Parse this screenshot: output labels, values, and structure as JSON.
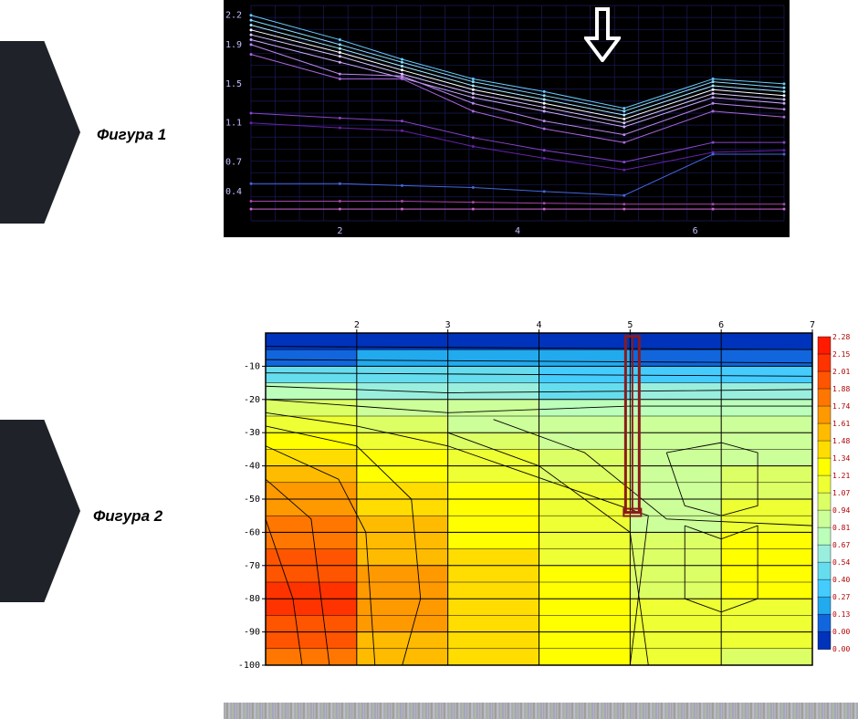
{
  "figure1": {
    "label": "Фигура 1",
    "type": "line",
    "background_color": "#000000",
    "grid_color": "#1a1a5a",
    "axis_label_color": "#c0c0ff",
    "axis_fontsize": 10,
    "xlim": [
      1,
      7
    ],
    "x_ticks": [
      2,
      4,
      6
    ],
    "y_ticks": [
      0.4,
      0.7,
      1.1,
      1.5,
      1.9,
      2.2
    ],
    "line_width": 1,
    "marker_size": 3,
    "arrow_stroke": "#ffffff",
    "arrow_stroke_width": 4,
    "series": [
      {
        "color": "#66ccff",
        "y": [
          2.2,
          1.95,
          1.75,
          1.55,
          1.42,
          1.25,
          1.55,
          1.5
        ]
      },
      {
        "color": "#88ddff",
        "y": [
          2.15,
          1.9,
          1.72,
          1.52,
          1.38,
          1.22,
          1.52,
          1.46
        ]
      },
      {
        "color": "#aaeeff",
        "y": [
          2.1,
          1.86,
          1.68,
          1.48,
          1.34,
          1.18,
          1.48,
          1.42
        ]
      },
      {
        "color": "#ffffff",
        "y": [
          2.05,
          1.82,
          1.64,
          1.44,
          1.3,
          1.14,
          1.44,
          1.38
        ]
      },
      {
        "color": "#ddccff",
        "y": [
          2.0,
          1.78,
          1.6,
          1.4,
          1.26,
          1.1,
          1.4,
          1.34
        ]
      },
      {
        "color": "#ccaaff",
        "y": [
          1.95,
          1.72,
          1.56,
          1.36,
          1.22,
          1.06,
          1.36,
          1.3
        ]
      },
      {
        "color": "#bb88ee",
        "y": [
          1.9,
          1.6,
          1.58,
          1.3,
          1.12,
          0.98,
          1.3,
          1.24
        ]
      },
      {
        "color": "#aa66dd",
        "y": [
          1.8,
          1.55,
          1.55,
          1.22,
          1.04,
          0.9,
          1.22,
          1.16
        ]
      },
      {
        "color": "#8844cc",
        "y": [
          1.2,
          1.15,
          1.12,
          0.95,
          0.82,
          0.7,
          0.9,
          0.9
        ]
      },
      {
        "color": "#6622aa",
        "y": [
          1.1,
          1.05,
          1.02,
          0.86,
          0.74,
          0.62,
          0.8,
          0.82
        ]
      },
      {
        "color": "#4466dd",
        "y": [
          0.48,
          0.48,
          0.46,
          0.44,
          0.4,
          0.36,
          0.78,
          0.78
        ]
      },
      {
        "color": "#aa44aa",
        "y": [
          0.3,
          0.3,
          0.3,
          0.29,
          0.28,
          0.27,
          0.27,
          0.27
        ]
      },
      {
        "color": "#cc66cc",
        "y": [
          0.22,
          0.22,
          0.22,
          0.22,
          0.22,
          0.22,
          0.22,
          0.22
        ]
      }
    ],
    "x": [
      1,
      2,
      2.7,
      3.5,
      4.3,
      5.2,
      6.2,
      7
    ]
  },
  "figure2": {
    "label": "Фигура 2",
    "type": "heatmap",
    "background_color": "#ffffff",
    "grid_color": "#000000",
    "axis_label_color": "#000000",
    "axis_fontsize": 10,
    "xlim": [
      1,
      7
    ],
    "ylim": [
      -100,
      0
    ],
    "x_ticks": [
      2,
      3,
      4,
      5,
      6,
      7
    ],
    "y_ticks": [
      -10,
      -20,
      -30,
      -40,
      -50,
      -60,
      -70,
      -80,
      -90,
      -100
    ],
    "contour_color": "#000000",
    "marker_rect_color": "#8b1a1a",
    "marker_rect_width": 3,
    "legend": {
      "values": [
        2.28,
        2.15,
        2.01,
        1.88,
        1.74,
        1.61,
        1.48,
        1.34,
        1.21,
        1.07,
        0.94,
        0.81,
        0.67,
        0.54,
        0.4,
        0.27,
        0.13,
        0.0
      ],
      "colors": [
        "#ff1a00",
        "#ff3300",
        "#ff5500",
        "#ff7700",
        "#ff9900",
        "#ffbb00",
        "#ffdd00",
        "#ffff00",
        "#eeff33",
        "#ddff66",
        "#ccff99",
        "#bbffbb",
        "#99eedd",
        "#66ddee",
        "#44ccff",
        "#22aaee",
        "#1166dd",
        "#0033bb"
      ],
      "fontsize": 8,
      "text_color": "#b00000"
    },
    "heatmap_rows": [
      {
        "y": 0,
        "cells": [
          "#0033bb",
          "#0033bb",
          "#0033bb",
          "#0033bb",
          "#0033bb",
          "#0033bb"
        ]
      },
      {
        "y": -5,
        "cells": [
          "#1166dd",
          "#22aaee",
          "#22aaee",
          "#22aaee",
          "#1166dd",
          "#1166dd"
        ]
      },
      {
        "y": -10,
        "cells": [
          "#66ddee",
          "#66ddee",
          "#66ddee",
          "#44ccff",
          "#44ccff",
          "#44ccff"
        ]
      },
      {
        "y": -15,
        "cells": [
          "#bbffbb",
          "#99eedd",
          "#99eedd",
          "#66ddee",
          "#99eedd",
          "#99eedd"
        ]
      },
      {
        "y": -20,
        "cells": [
          "#ddff66",
          "#ccff99",
          "#ccff99",
          "#bbffbb",
          "#bbffbb",
          "#bbffbb"
        ]
      },
      {
        "y": -25,
        "cells": [
          "#eeff33",
          "#ddff66",
          "#ccff99",
          "#ccff99",
          "#ccff99",
          "#ccff99"
        ]
      },
      {
        "y": -30,
        "cells": [
          "#ffff00",
          "#eeff33",
          "#ddff66",
          "#ccff99",
          "#ccff99",
          "#ccff99"
        ]
      },
      {
        "y": -35,
        "cells": [
          "#ffdd00",
          "#ffff00",
          "#eeff33",
          "#ddff66",
          "#ccff99",
          "#ccff99"
        ]
      },
      {
        "y": -40,
        "cells": [
          "#ffbb00",
          "#ffff00",
          "#eeff33",
          "#ddff66",
          "#ccff99",
          "#ddff66"
        ]
      },
      {
        "y": -45,
        "cells": [
          "#ff9900",
          "#ffdd00",
          "#ffff00",
          "#eeff33",
          "#ccff99",
          "#ddff66"
        ]
      },
      {
        "y": -50,
        "cells": [
          "#ff9900",
          "#ffdd00",
          "#ffff00",
          "#eeff33",
          "#ccff99",
          "#eeff33"
        ]
      },
      {
        "y": -55,
        "cells": [
          "#ff7700",
          "#ffbb00",
          "#ffff00",
          "#eeff33",
          "#ccff99",
          "#eeff33"
        ]
      },
      {
        "y": -60,
        "cells": [
          "#ff7700",
          "#ffbb00",
          "#ffff00",
          "#eeff33",
          "#ddff66",
          "#ffff00"
        ]
      },
      {
        "y": -65,
        "cells": [
          "#ff5500",
          "#ffbb00",
          "#ffdd00",
          "#eeff33",
          "#ddff66",
          "#ffff00"
        ]
      },
      {
        "y": -70,
        "cells": [
          "#ff5500",
          "#ff9900",
          "#ffdd00",
          "#ffff00",
          "#ddff66",
          "#ffff00"
        ]
      },
      {
        "y": -75,
        "cells": [
          "#ff3300",
          "#ff9900",
          "#ffdd00",
          "#ffff00",
          "#ddff66",
          "#ffff00"
        ]
      },
      {
        "y": -80,
        "cells": [
          "#ff3300",
          "#ff9900",
          "#ffdd00",
          "#ffff00",
          "#eeff33",
          "#eeff33"
        ]
      },
      {
        "y": -85,
        "cells": [
          "#ff5500",
          "#ff9900",
          "#ffdd00",
          "#ffff00",
          "#eeff33",
          "#eeff33"
        ]
      },
      {
        "y": -90,
        "cells": [
          "#ff5500",
          "#ffbb00",
          "#ffdd00",
          "#ffff00",
          "#eeff33",
          "#eeff33"
        ]
      },
      {
        "y": -95,
        "cells": [
          "#ff7700",
          "#ffbb00",
          "#ffdd00",
          "#ffff00",
          "#eeff33",
          "#ddff66"
        ]
      }
    ],
    "heatmap_x_edges": [
      1,
      2,
      3,
      4,
      5,
      6,
      7
    ],
    "contours": [
      [
        [
          1,
          -4
        ],
        [
          7,
          -5
        ]
      ],
      [
        [
          1,
          -8
        ],
        [
          7,
          -9
        ]
      ],
      [
        [
          1,
          -12
        ],
        [
          7,
          -13
        ]
      ],
      [
        [
          1,
          -16
        ],
        [
          3,
          -18
        ],
        [
          7,
          -17
        ]
      ],
      [
        [
          1,
          -20
        ],
        [
          3,
          -24
        ],
        [
          5,
          -22
        ],
        [
          7,
          -22
        ]
      ],
      [
        [
          1,
          -24
        ],
        [
          2,
          -28
        ],
        [
          3,
          -34
        ],
        [
          5.2,
          -55
        ],
        [
          5,
          -100
        ]
      ],
      [
        [
          1,
          -28
        ],
        [
          2,
          -34
        ],
        [
          2.6,
          -50
        ],
        [
          2.7,
          -80
        ],
        [
          2.5,
          -100
        ]
      ],
      [
        [
          1,
          -34
        ],
        [
          1.8,
          -44
        ],
        [
          2.1,
          -60
        ],
        [
          2.2,
          -100
        ]
      ],
      [
        [
          1,
          -44
        ],
        [
          1.5,
          -56
        ],
        [
          1.7,
          -100
        ]
      ],
      [
        [
          1,
          -56
        ],
        [
          1.3,
          -80
        ],
        [
          1.4,
          -100
        ]
      ],
      [
        [
          5.4,
          -36
        ],
        [
          5.6,
          -52
        ],
        [
          6,
          -55
        ],
        [
          6.4,
          -52
        ],
        [
          6.4,
          -36
        ],
        [
          6,
          -33
        ],
        [
          5.4,
          -36
        ]
      ],
      [
        [
          5.6,
          -58
        ],
        [
          6,
          -62
        ],
        [
          6.4,
          -58
        ],
        [
          6.4,
          -80
        ],
        [
          6,
          -84
        ],
        [
          5.6,
          -80
        ],
        [
          5.6,
          -58
        ]
      ],
      [
        [
          3,
          -30
        ],
        [
          4,
          -40
        ],
        [
          5,
          -60
        ],
        [
          5.2,
          -100
        ]
      ],
      [
        [
          3.5,
          -26
        ],
        [
          4.5,
          -36
        ],
        [
          5.4,
          -56
        ],
        [
          7,
          -58
        ]
      ]
    ]
  }
}
